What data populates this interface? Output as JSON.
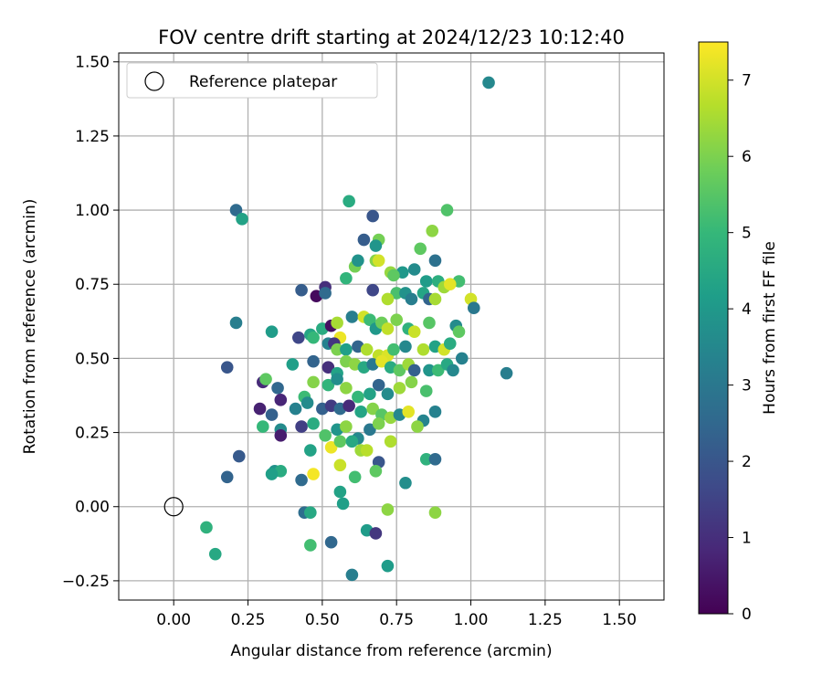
{
  "chart_data": {
    "type": "scatter",
    "title": "FOV centre drift starting at 2024/12/23 10:12:40",
    "xlabel": "Angular distance from reference (arcmin)",
    "ylabel": "Rotation from reference (arcmin)",
    "xlim": [
      -0.185,
      1.65
    ],
    "ylim": [
      -0.315,
      1.53
    ],
    "xticks": [
      0.0,
      0.25,
      0.5,
      0.75,
      1.0,
      1.25,
      1.5
    ],
    "xtick_labels": [
      "0.00",
      "0.25",
      "0.50",
      "0.75",
      "1.00",
      "1.25",
      "1.50"
    ],
    "yticks": [
      -0.25,
      0.0,
      0.25,
      0.5,
      0.75,
      1.0,
      1.25,
      1.5
    ],
    "ytick_labels": [
      "−0.25",
      "0.00",
      "0.25",
      "0.50",
      "0.75",
      "1.00",
      "1.25",
      "1.50"
    ],
    "grid": true,
    "legend": {
      "position": "top-left",
      "entries": [
        "Reference platepar"
      ]
    },
    "reference_point": {
      "x": 0.0,
      "y": 0.0,
      "name": "Reference platepar",
      "marker": "open-circle",
      "color": "#000000"
    },
    "colorbar": {
      "label": "Hours from first FF file",
      "range": [
        0,
        7.5
      ],
      "ticks": [
        0,
        1,
        2,
        3,
        4,
        5,
        6,
        7
      ],
      "tick_labels": [
        "0",
        "1",
        "2",
        "3",
        "4",
        "5",
        "6",
        "7"
      ],
      "colormap": "viridis",
      "stops": [
        "#440154",
        "#482878",
        "#3e4a89",
        "#31688e",
        "#26828e",
        "#1f9e89",
        "#35b779",
        "#6ece58",
        "#b5de2b",
        "#fde725"
      ]
    },
    "points": [
      [
        1.06,
        1.43,
        3.5
      ],
      [
        0.21,
        1.0,
        2.6
      ],
      [
        0.23,
        0.97,
        4.3
      ],
      [
        0.59,
        1.03,
        4.6
      ],
      [
        0.67,
        0.98,
        2.0
      ],
      [
        0.92,
        1.0,
        5.4
      ],
      [
        0.88,
        0.83,
        2.8
      ],
      [
        0.64,
        0.9,
        2.2
      ],
      [
        0.69,
        0.9,
        5.9
      ],
      [
        0.87,
        0.93,
        6.2
      ],
      [
        0.83,
        0.87,
        5.6
      ],
      [
        0.68,
        0.88,
        3.9
      ],
      [
        0.68,
        0.83,
        6.1
      ],
      [
        0.61,
        0.81,
        5.9
      ],
      [
        0.69,
        0.83,
        7.0
      ],
      [
        0.62,
        0.83,
        3.8
      ],
      [
        0.73,
        0.79,
        6.3
      ],
      [
        0.77,
        0.79,
        4.0
      ],
      [
        0.81,
        0.8,
        3.6
      ],
      [
        0.74,
        0.78,
        5.6
      ],
      [
        0.58,
        0.77,
        4.9
      ],
      [
        0.85,
        0.76,
        4.1
      ],
      [
        0.89,
        0.76,
        4.7
      ],
      [
        0.96,
        0.76,
        5.2
      ],
      [
        0.91,
        0.74,
        6.4
      ],
      [
        0.93,
        0.75,
        7.2
      ],
      [
        0.43,
        0.73,
        2.2
      ],
      [
        0.51,
        0.74,
        1.0
      ],
      [
        0.48,
        0.71,
        0.2
      ],
      [
        0.51,
        0.72,
        2.6
      ],
      [
        0.67,
        0.73,
        1.6
      ],
      [
        0.75,
        0.72,
        5.3
      ],
      [
        0.78,
        0.72,
        3.8
      ],
      [
        0.84,
        0.72,
        4.4
      ],
      [
        0.86,
        0.7,
        2.4
      ],
      [
        0.88,
        0.7,
        6.5
      ],
      [
        0.72,
        0.7,
        6.6
      ],
      [
        0.8,
        0.7,
        3.2
      ],
      [
        1.0,
        0.7,
        7.0
      ],
      [
        1.01,
        0.67,
        3.0
      ],
      [
        0.21,
        0.62,
        3.2
      ],
      [
        0.33,
        0.59,
        4.1
      ],
      [
        0.42,
        0.57,
        1.6
      ],
      [
        0.46,
        0.58,
        4.4
      ],
      [
        0.47,
        0.57,
        5.0
      ],
      [
        0.5,
        0.6,
        4.6
      ],
      [
        0.53,
        0.61,
        0.3
      ],
      [
        0.55,
        0.62,
        6.5
      ],
      [
        0.56,
        0.57,
        7.3
      ],
      [
        0.6,
        0.64,
        3.2
      ],
      [
        0.64,
        0.64,
        7.0
      ],
      [
        0.66,
        0.63,
        5.1
      ],
      [
        0.68,
        0.6,
        4.0
      ],
      [
        0.7,
        0.62,
        5.8
      ],
      [
        0.72,
        0.6,
        6.8
      ],
      [
        0.75,
        0.63,
        6.0
      ],
      [
        0.79,
        0.6,
        4.8
      ],
      [
        0.81,
        0.59,
        6.9
      ],
      [
        0.86,
        0.62,
        5.5
      ],
      [
        0.95,
        0.61,
        3.6
      ],
      [
        0.96,
        0.59,
        5.6
      ],
      [
        0.52,
        0.55,
        3.3
      ],
      [
        0.54,
        0.55,
        1.2
      ],
      [
        0.55,
        0.53,
        6.0
      ],
      [
        0.58,
        0.53,
        4.2
      ],
      [
        0.62,
        0.54,
        2.4
      ],
      [
        0.65,
        0.53,
        6.6
      ],
      [
        0.69,
        0.51,
        6.8
      ],
      [
        0.72,
        0.51,
        7.1
      ],
      [
        0.74,
        0.53,
        5.2
      ],
      [
        0.78,
        0.54,
        3.5
      ],
      [
        0.84,
        0.53,
        6.6
      ],
      [
        0.88,
        0.54,
        4.3
      ],
      [
        0.91,
        0.53,
        7.0
      ],
      [
        0.93,
        0.55,
        4.6
      ],
      [
        0.97,
        0.5,
        3.3
      ],
      [
        0.4,
        0.48,
        4.2
      ],
      [
        0.47,
        0.49,
        2.4
      ],
      [
        0.52,
        0.47,
        1.0
      ],
      [
        0.55,
        0.45,
        4.3
      ],
      [
        0.58,
        0.49,
        6.0
      ],
      [
        0.61,
        0.48,
        6.2
      ],
      [
        0.64,
        0.47,
        4.5
      ],
      [
        0.67,
        0.48,
        3.0
      ],
      [
        0.7,
        0.49,
        7.2
      ],
      [
        0.73,
        0.47,
        4.6
      ],
      [
        0.76,
        0.46,
        5.6
      ],
      [
        0.79,
        0.48,
        6.4
      ],
      [
        0.81,
        0.46,
        2.3
      ],
      [
        0.86,
        0.46,
        3.9
      ],
      [
        0.89,
        0.46,
        5.1
      ],
      [
        0.92,
        0.48,
        4.5
      ],
      [
        0.94,
        0.46,
        3.5
      ],
      [
        1.12,
        0.45,
        3.2
      ],
      [
        0.18,
        0.47,
        2.0
      ],
      [
        0.3,
        0.42,
        0.9
      ],
      [
        0.31,
        0.43,
        5.6
      ],
      [
        0.35,
        0.4,
        2.5
      ],
      [
        0.44,
        0.37,
        5.1
      ],
      [
        0.47,
        0.42,
        6.1
      ],
      [
        0.52,
        0.41,
        4.9
      ],
      [
        0.55,
        0.43,
        3.7
      ],
      [
        0.58,
        0.4,
        6.2
      ],
      [
        0.62,
        0.37,
        5.0
      ],
      [
        0.66,
        0.38,
        4.3
      ],
      [
        0.69,
        0.41,
        2.4
      ],
      [
        0.72,
        0.38,
        3.6
      ],
      [
        0.76,
        0.4,
        6.4
      ],
      [
        0.8,
        0.42,
        6.1
      ],
      [
        0.85,
        0.39,
        5.3
      ],
      [
        0.29,
        0.33,
        0.7
      ],
      [
        0.33,
        0.31,
        2.3
      ],
      [
        0.36,
        0.36,
        0.8
      ],
      [
        0.41,
        0.33,
        3.3
      ],
      [
        0.45,
        0.35,
        3.6
      ],
      [
        0.5,
        0.33,
        2.3
      ],
      [
        0.53,
        0.34,
        1.3
      ],
      [
        0.56,
        0.33,
        2.6
      ],
      [
        0.59,
        0.34,
        0.9
      ],
      [
        0.63,
        0.32,
        4.4
      ],
      [
        0.67,
        0.33,
        6.1
      ],
      [
        0.7,
        0.31,
        5.5
      ],
      [
        0.73,
        0.3,
        6.3
      ],
      [
        0.76,
        0.31,
        3.5
      ],
      [
        0.79,
        0.32,
        7.2
      ],
      [
        0.84,
        0.29,
        3.4
      ],
      [
        0.88,
        0.32,
        3.3
      ],
      [
        0.3,
        0.27,
        5.0
      ],
      [
        0.36,
        0.26,
        3.6
      ],
      [
        0.36,
        0.24,
        0.6
      ],
      [
        0.43,
        0.27,
        1.4
      ],
      [
        0.47,
        0.28,
        4.6
      ],
      [
        0.51,
        0.24,
        5.4
      ],
      [
        0.55,
        0.26,
        3.9
      ],
      [
        0.58,
        0.27,
        6.2
      ],
      [
        0.62,
        0.23,
        3.5
      ],
      [
        0.66,
        0.26,
        3.0
      ],
      [
        0.69,
        0.28,
        6.0
      ],
      [
        0.73,
        0.22,
        6.6
      ],
      [
        0.82,
        0.27,
        6.2
      ],
      [
        0.46,
        0.19,
        4.3
      ],
      [
        0.53,
        0.2,
        7.3
      ],
      [
        0.56,
        0.22,
        5.6
      ],
      [
        0.6,
        0.22,
        4.5
      ],
      [
        0.63,
        0.19,
        6.4
      ],
      [
        0.65,
        0.19,
        6.7
      ],
      [
        0.69,
        0.15,
        2.0
      ],
      [
        0.22,
        0.17,
        2.1
      ],
      [
        0.34,
        0.12,
        3.8
      ],
      [
        0.36,
        0.12,
        4.6
      ],
      [
        0.43,
        0.09,
        2.6
      ],
      [
        0.47,
        0.11,
        7.4
      ],
      [
        0.56,
        0.14,
        6.9
      ],
      [
        0.61,
        0.1,
        5.2
      ],
      [
        0.68,
        0.12,
        5.6
      ],
      [
        0.78,
        0.08,
        3.7
      ],
      [
        0.85,
        0.16,
        4.8
      ],
      [
        0.88,
        0.16,
        2.6
      ],
      [
        0.18,
        0.1,
        2.4
      ],
      [
        0.33,
        0.11,
        4.2
      ],
      [
        0.56,
        0.05,
        4.3
      ],
      [
        0.57,
        0.01,
        4.2
      ],
      [
        0.44,
        -0.02,
        2.7
      ],
      [
        0.46,
        -0.02,
        4.5
      ],
      [
        0.72,
        -0.01,
        6.2
      ],
      [
        0.88,
        -0.02,
        6.2
      ],
      [
        0.11,
        -0.07,
        4.8
      ],
      [
        0.65,
        -0.08,
        4.1
      ],
      [
        0.68,
        -0.09,
        1.2
      ],
      [
        0.14,
        -0.16,
        4.5
      ],
      [
        0.46,
        -0.13,
        5.2
      ],
      [
        0.53,
        -0.12,
        2.5
      ],
      [
        0.72,
        -0.2,
        4.1
      ],
      [
        0.6,
        -0.23,
        3.2
      ]
    ]
  }
}
